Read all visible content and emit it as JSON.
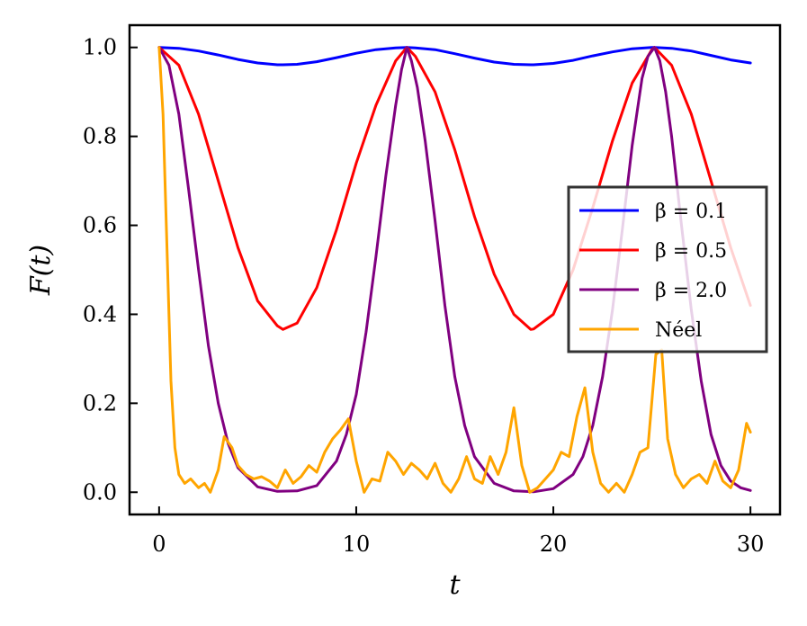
{
  "chart_data": {
    "type": "line",
    "title": "",
    "xlabel": "t",
    "ylabel": "F(t)",
    "xlim": [
      -1.5,
      31.5
    ],
    "ylim": [
      -0.05,
      1.05
    ],
    "xticks": [
      0,
      10,
      20,
      30
    ],
    "xtick_labels": [
      "0",
      "10",
      "20",
      "30"
    ],
    "yticks": [
      0.0,
      0.2,
      0.4,
      0.6,
      0.8,
      1.0
    ],
    "ytick_labels": [
      "0.0",
      "0.2",
      "0.4",
      "0.6",
      "0.8",
      "1.0"
    ],
    "grid": false,
    "legend_position": "center-right",
    "series": [
      {
        "name": "β = 0.1",
        "color": "#0000ff",
        "x": [
          0,
          1,
          2,
          3,
          4,
          5,
          6,
          6.28,
          7,
          8,
          9,
          10,
          11,
          12,
          12.57,
          13,
          14,
          15,
          16,
          17,
          18,
          18.85,
          19,
          20,
          21,
          22,
          23,
          24,
          25,
          25.13,
          26,
          27,
          28,
          29,
          30
        ],
        "y": [
          1.0,
          0.998,
          0.992,
          0.983,
          0.973,
          0.965,
          0.961,
          0.961,
          0.962,
          0.968,
          0.977,
          0.987,
          0.995,
          0.999,
          1.0,
          0.999,
          0.995,
          0.986,
          0.976,
          0.967,
          0.962,
          0.961,
          0.961,
          0.964,
          0.971,
          0.981,
          0.99,
          0.997,
          1.0,
          1.0,
          0.998,
          0.992,
          0.982,
          0.972,
          0.965
        ]
      },
      {
        "name": "β = 0.5",
        "color": "#ff0000",
        "x": [
          0,
          1,
          2,
          3,
          4,
          5,
          6,
          6.28,
          7,
          8,
          9,
          10,
          11,
          12,
          12.57,
          13,
          14,
          15,
          16,
          17,
          18,
          18.85,
          19,
          20,
          21,
          22,
          23,
          24,
          25,
          25.13,
          26,
          27,
          28,
          29,
          30
        ],
        "y": [
          1.0,
          0.96,
          0.85,
          0.7,
          0.55,
          0.43,
          0.374,
          0.366,
          0.38,
          0.46,
          0.59,
          0.74,
          0.87,
          0.97,
          1.0,
          0.98,
          0.9,
          0.77,
          0.62,
          0.49,
          0.4,
          0.366,
          0.367,
          0.4,
          0.5,
          0.64,
          0.79,
          0.92,
          0.995,
          1.0,
          0.96,
          0.85,
          0.7,
          0.55,
          0.42
        ]
      },
      {
        "name": "β = 2.0",
        "color": "#800080",
        "x": [
          0,
          0.5,
          1,
          1.5,
          2,
          2.5,
          3,
          3.5,
          4,
          5,
          6,
          7,
          8,
          9,
          9.5,
          10,
          10.5,
          11,
          11.5,
          12,
          12.3,
          12.57,
          12.8,
          13.1,
          13.5,
          14,
          14.5,
          15,
          15.5,
          16,
          17,
          18,
          19,
          20,
          21,
          21.5,
          22,
          22.5,
          23,
          23.5,
          24,
          24.5,
          24.8,
          25.13,
          25.4,
          25.7,
          26,
          26.5,
          27,
          27.5,
          28,
          28.5,
          29,
          29.5,
          30
        ],
        "y": [
          1.0,
          0.96,
          0.85,
          0.68,
          0.5,
          0.33,
          0.2,
          0.11,
          0.055,
          0.012,
          0.002,
          0.003,
          0.015,
          0.07,
          0.13,
          0.22,
          0.36,
          0.53,
          0.71,
          0.87,
          0.95,
          1.0,
          0.97,
          0.91,
          0.79,
          0.61,
          0.42,
          0.26,
          0.15,
          0.08,
          0.02,
          0.003,
          0.001,
          0.008,
          0.04,
          0.08,
          0.15,
          0.26,
          0.41,
          0.59,
          0.78,
          0.93,
          0.98,
          1.0,
          0.97,
          0.9,
          0.8,
          0.6,
          0.41,
          0.25,
          0.13,
          0.06,
          0.025,
          0.01,
          0.004
        ]
      },
      {
        "name": "Néel",
        "color": "#ffa500",
        "x": [
          0,
          0.2,
          0.4,
          0.6,
          0.8,
          1.0,
          1.3,
          1.6,
          2.0,
          2.3,
          2.6,
          3.0,
          3.3,
          3.7,
          4.0,
          4.4,
          4.8,
          5.2,
          5.6,
          6.0,
          6.4,
          6.8,
          7.2,
          7.6,
          8.0,
          8.4,
          8.8,
          9.2,
          9.6,
          10.0,
          10.4,
          10.8,
          11.2,
          11.6,
          12.0,
          12.4,
          12.8,
          13.2,
          13.6,
          14.0,
          14.4,
          14.8,
          15.2,
          15.6,
          16.0,
          16.4,
          16.8,
          17.2,
          17.6,
          18.0,
          18.4,
          18.8,
          19.2,
          19.6,
          20.0,
          20.4,
          20.8,
          21.2,
          21.6,
          22.0,
          22.4,
          22.8,
          23.2,
          23.6,
          24.0,
          24.4,
          24.8,
          25.2,
          25.5,
          25.8,
          26.2,
          26.6,
          27.0,
          27.4,
          27.8,
          28.2,
          28.6,
          29.0,
          29.4,
          29.8,
          30.0
        ],
        "y": [
          1.0,
          0.85,
          0.55,
          0.25,
          0.1,
          0.04,
          0.02,
          0.03,
          0.01,
          0.02,
          0.0,
          0.05,
          0.125,
          0.1,
          0.06,
          0.04,
          0.03,
          0.035,
          0.025,
          0.01,
          0.05,
          0.02,
          0.035,
          0.06,
          0.045,
          0.09,
          0.12,
          0.14,
          0.165,
          0.07,
          0.0,
          0.03,
          0.025,
          0.09,
          0.07,
          0.04,
          0.065,
          0.05,
          0.03,
          0.065,
          0.02,
          0.0,
          0.03,
          0.08,
          0.03,
          0.02,
          0.08,
          0.04,
          0.09,
          0.19,
          0.06,
          0.0,
          0.01,
          0.03,
          0.05,
          0.09,
          0.08,
          0.17,
          0.235,
          0.09,
          0.02,
          0.0,
          0.02,
          0.0,
          0.04,
          0.09,
          0.1,
          0.31,
          0.32,
          0.12,
          0.04,
          0.01,
          0.03,
          0.04,
          0.02,
          0.07,
          0.025,
          0.01,
          0.05,
          0.155,
          0.135
        ]
      }
    ]
  }
}
